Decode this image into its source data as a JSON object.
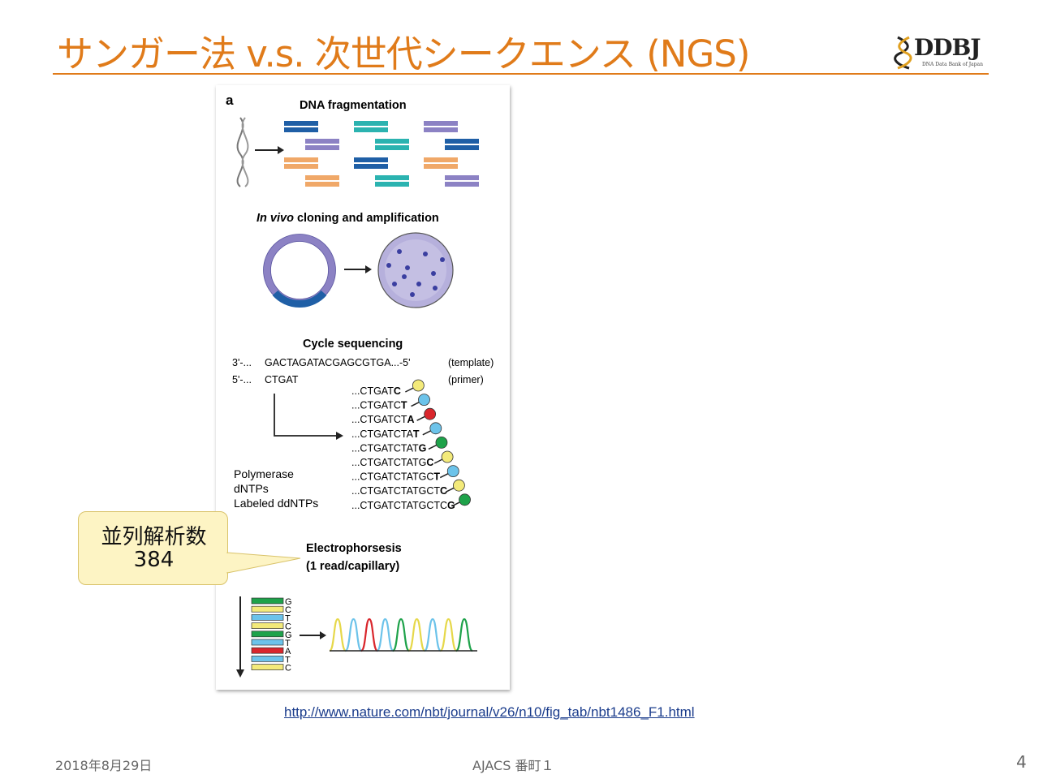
{
  "slide": {
    "title": "サンガー法 v.s. 次世代シークエンス (NGS)",
    "logo_text": "DDBJ",
    "logo_subtext": "DNA Data Bank of Japan",
    "url": "http://www.nature.com/nbt/journal/v26/n10/fig_tab/nbt1486_F1.html",
    "footer_date": "2018年8月29日",
    "footer_center": "AJACS 番町１",
    "page_number": "4"
  },
  "callout": {
    "line1": "並列解析数",
    "line2": "384"
  },
  "figure": {
    "panel_label": "a",
    "step1": "DNA fragmentation",
    "step2_italic": "In vivo",
    "step2_rest": " cloning and amplification",
    "step3": "Cycle sequencing",
    "template_prefix": "3'-...",
    "template_seq": "GACTAGATACGAGCGTGA...-5'",
    "template_label": "(template)",
    "primer_prefix": "5'-...",
    "primer_seq": "CTGAT",
    "primer_label": "(primer)",
    "reagents": [
      "Polymerase",
      "dNTPs",
      "Labeled ddNTPs"
    ],
    "fragments": [
      {
        "base": "...CTGAT",
        "last": "C",
        "color": "#f3ea7a"
      },
      {
        "base": "...CTGATC",
        "last": "T",
        "color": "#6cc3ea"
      },
      {
        "base": "...CTGATCT",
        "last": "A",
        "color": "#d9262c"
      },
      {
        "base": "...CTGATCTA",
        "last": "T",
        "color": "#6cc3ea"
      },
      {
        "base": "...CTGATCTAT",
        "last": "G",
        "color": "#1ea24a"
      },
      {
        "base": "...CTGATCTATG",
        "last": "C",
        "color": "#f3ea7a"
      },
      {
        "base": "...CTGATCTATGC",
        "last": "T",
        "color": "#6cc3ea"
      },
      {
        "base": "...CTGATCTATGCT",
        "last": "C",
        "color": "#f3ea7a"
      },
      {
        "base": "...CTGATCTATGCTC",
        "last": "G",
        "color": "#1ea24a"
      }
    ],
    "step4_line1": "Electrophorsesis",
    "step4_line2": "(1 read/capillary)",
    "gel_bases": [
      "G",
      "C",
      "T",
      "C",
      "G",
      "T",
      "A",
      "T",
      "C"
    ],
    "gel_colors": [
      "#1ea24a",
      "#f3ea7a",
      "#6cc3ea",
      "#f3ea7a",
      "#1ea24a",
      "#6cc3ea",
      "#d9262c",
      "#6cc3ea",
      "#f3ea7a"
    ],
    "colors": {
      "fragment_blue": "#1f5fa6",
      "fragment_teal": "#2bb3b0",
      "fragment_purple": "#8c82c4",
      "fragment_orange": "#f0a868",
      "plasmid": "#8c82c4",
      "colony": "#3a3ea0"
    }
  }
}
